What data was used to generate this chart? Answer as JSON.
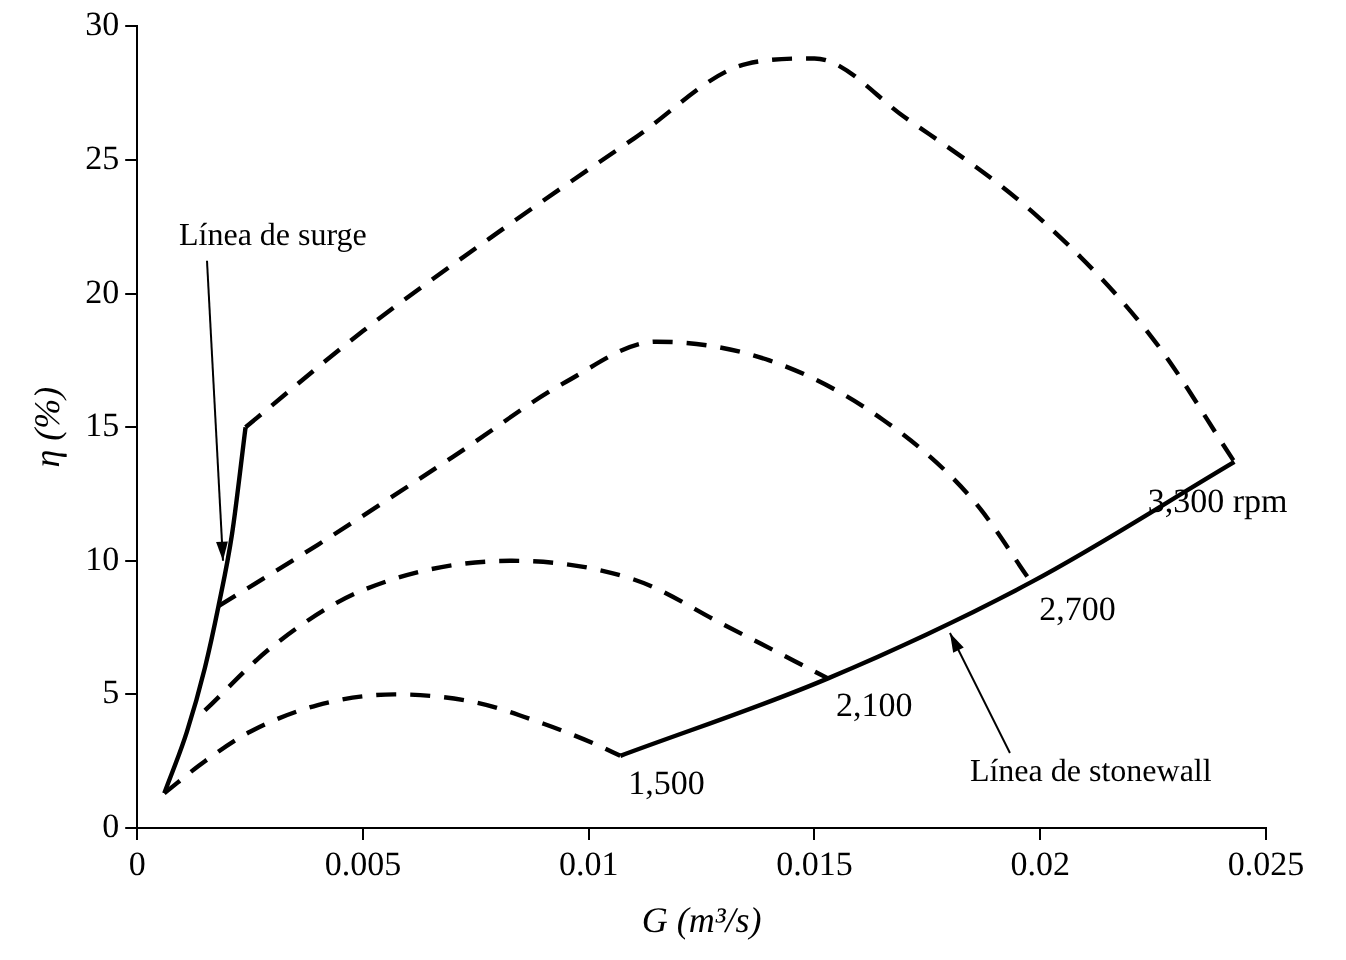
{
  "chart_data": {
    "type": "line",
    "xlabel": "G (m³/s)",
    "ylabel": "η (%)",
    "xlim": [
      0,
      0.025
    ],
    "xticks": [
      0,
      0.005,
      0.01,
      0.015,
      0.02,
      0.025
    ],
    "ylim": [
      0,
      30
    ],
    "yticks": [
      0,
      5,
      10,
      15,
      20,
      25,
      30
    ],
    "grid": false,
    "legend": false,
    "marker": "none",
    "series": [
      {
        "name": "1,500",
        "color": "#000000",
        "line_style": "dashed",
        "x": [
          0.0006,
          0.0015,
          0.0025,
          0.004,
          0.0057,
          0.0075,
          0.009,
          0.0102,
          0.0107
        ],
        "values": [
          1.3,
          2.5,
          3.6,
          4.6,
          5.0,
          4.7,
          3.9,
          3.1,
          2.7
        ]
      },
      {
        "name": "2,100",
        "color": "#000000",
        "line_style": "dashed",
        "x": [
          0.0015,
          0.003,
          0.005,
          0.0083,
          0.011,
          0.013,
          0.0153
        ],
        "values": [
          4.4,
          6.8,
          8.9,
          10.0,
          9.3,
          7.6,
          5.6
        ]
      },
      {
        "name": "2,700",
        "color": "#000000",
        "line_style": "dashed",
        "x": [
          0.0018,
          0.004,
          0.007,
          0.0095,
          0.0115,
          0.014,
          0.0165,
          0.0185,
          0.0198
        ],
        "values": [
          8.3,
          10.6,
          13.9,
          16.7,
          18.2,
          17.5,
          15.3,
          12.3,
          9.2
        ]
      },
      {
        "name": "3,300 rpm",
        "color": "#000000",
        "line_style": "dashed",
        "x": [
          0.0024,
          0.005,
          0.008,
          0.011,
          0.0135,
          0.015,
          0.017,
          0.02,
          0.0225,
          0.0243
        ],
        "values": [
          15.0,
          18.6,
          22.3,
          25.8,
          28.6,
          28.8,
          26.6,
          22.8,
          18.3,
          13.7
        ]
      },
      {
        "color": "#000000",
        "line_style": "solid",
        "x": [
          0.0006,
          0.0011,
          0.0015,
          0.0018,
          0.0021,
          0.0024
        ],
        "values": [
          1.3,
          3.6,
          6.0,
          8.3,
          11.0,
          15.0
        ]
      },
      {
        "color": "#000000",
        "line_style": "solid",
        "x": [
          0.0107,
          0.0153,
          0.0198,
          0.0243
        ],
        "values": [
          2.7,
          5.6,
          9.2,
          13.7
        ]
      }
    ],
    "annotations": [
      {
        "text": "Línea de surge",
        "x": 0.0019,
        "y": 10
      },
      {
        "text": "Línea de stonewall",
        "x": 0.018,
        "y": 7.3
      }
    ]
  }
}
